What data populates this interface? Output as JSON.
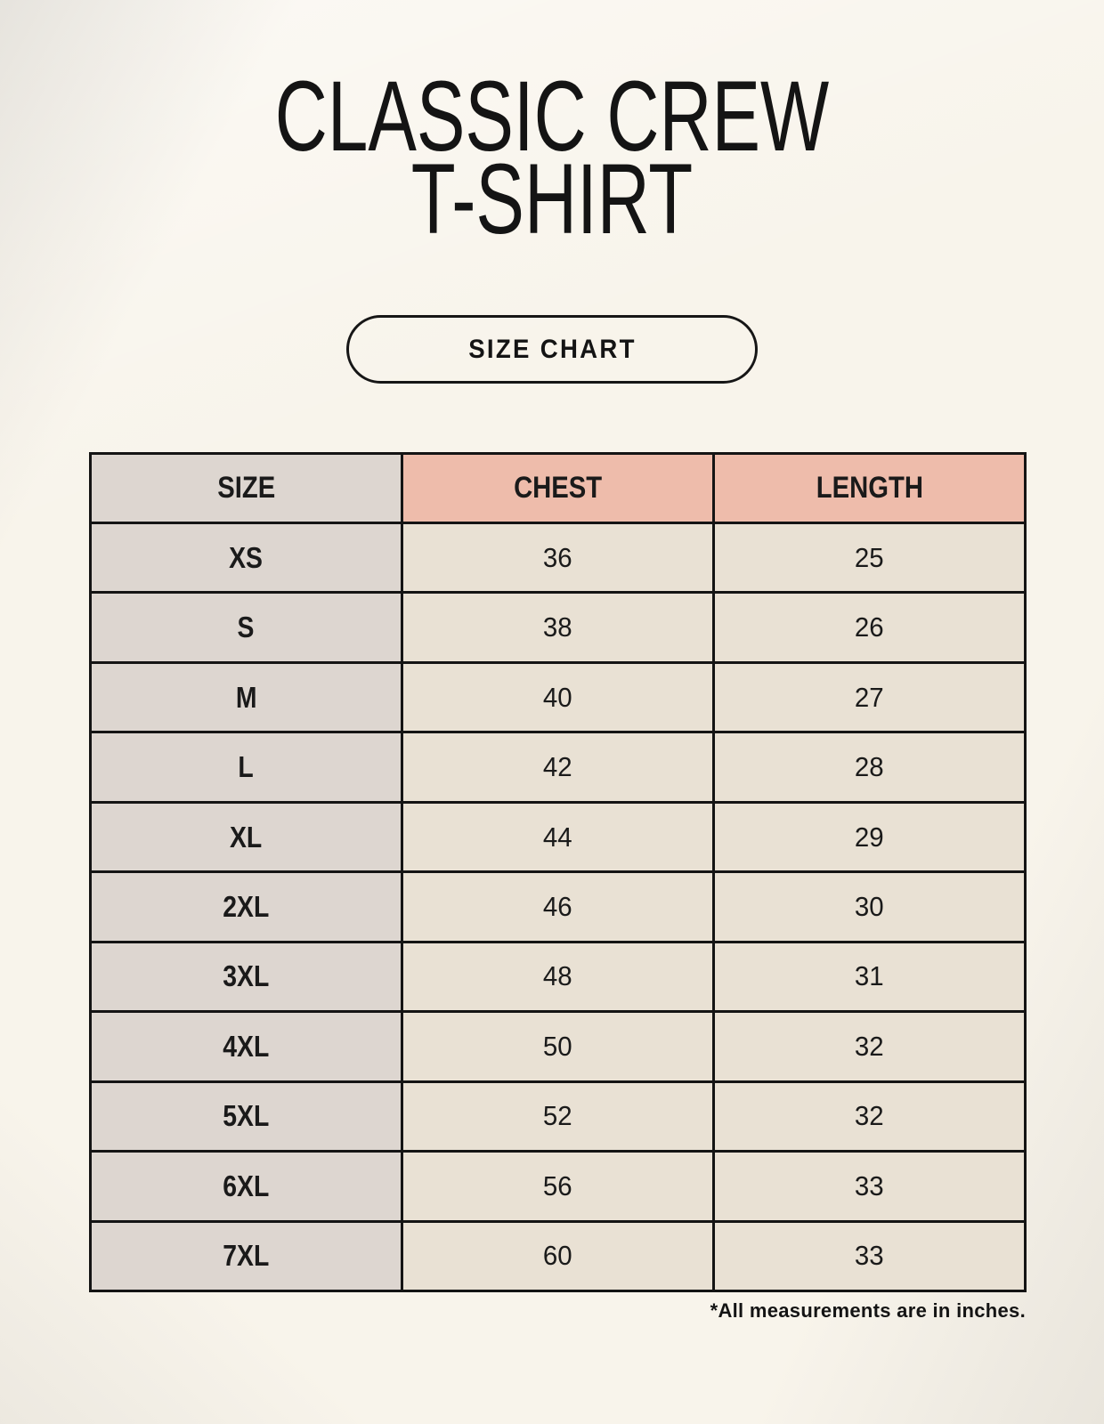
{
  "header": {
    "title_line1": "CLASSIC CREW",
    "title_line2": "T-SHIRT",
    "badge_label": "SIZE CHART"
  },
  "footer": {
    "note": "*All measurements are in inches."
  },
  "chart_data": {
    "type": "table",
    "title": "CLASSIC CREW T-SHIRT",
    "subtitle": "SIZE CHART",
    "columns": [
      "SIZE",
      "CHEST",
      "LENGTH"
    ],
    "rows": [
      [
        "XS",
        "36",
        "25"
      ],
      [
        "S",
        "38",
        "26"
      ],
      [
        "M",
        "40",
        "27"
      ],
      [
        "L",
        "42",
        "28"
      ],
      [
        "XL",
        "44",
        "29"
      ],
      [
        "2XL",
        "46",
        "30"
      ],
      [
        "3XL",
        "48",
        "31"
      ],
      [
        "4XL",
        "50",
        "32"
      ],
      [
        "5XL",
        "52",
        "32"
      ],
      [
        "6XL",
        "56",
        "33"
      ],
      [
        "7XL",
        "60",
        "33"
      ]
    ],
    "units_note": "*All measurements are in inches."
  },
  "colors": {
    "page_background": "#f8f4eb",
    "size_column_bg": "#ddd6d0",
    "header_accent_bg": "#eebcab",
    "value_cell_bg": "#e9e1d4",
    "table_border": "#141414",
    "text": "#141414"
  }
}
